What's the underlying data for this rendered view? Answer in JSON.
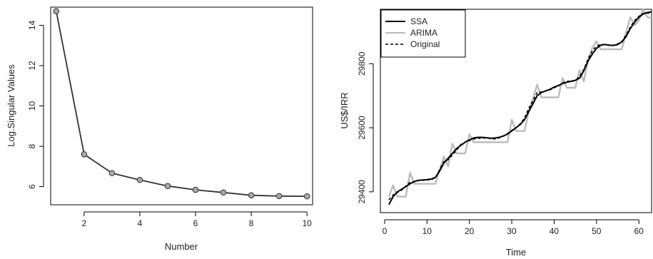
{
  "chart_data": [
    {
      "type": "line",
      "xlabel": "Number",
      "ylabel": "Log.Singular Values",
      "xlim": [
        0.8,
        10.2
      ],
      "ylim": [
        5.1,
        14.9
      ],
      "x_ticks": [
        2,
        4,
        6,
        8,
        10
      ],
      "y_ticks": [
        6,
        8,
        10,
        12,
        14
      ],
      "grid": false,
      "x": [
        1,
        2,
        3,
        4,
        5,
        6,
        7,
        8,
        9,
        10
      ],
      "series": [
        {
          "values": [
            14.7,
            7.6,
            6.67,
            6.33,
            6.03,
            5.84,
            5.71,
            5.57,
            5.53,
            5.52
          ],
          "color": "#333333",
          "marker": "circle",
          "marker_fill": "#a8a8a8"
        }
      ]
    },
    {
      "type": "line",
      "xlabel": "Time",
      "ylabel": "US$/IRR",
      "xlim": [
        -1,
        63
      ],
      "ylim": [
        29335,
        29970
      ],
      "x_ticks": [
        0,
        10,
        20,
        30,
        40,
        50,
        60
      ],
      "y_ticks": [
        29400,
        29600,
        29800
      ],
      "grid": false,
      "legend_position": "top-left",
      "x": [
        1,
        2,
        3,
        4,
        5,
        6,
        7,
        8,
        9,
        10,
        11,
        12,
        13,
        14,
        15,
        16,
        17,
        18,
        19,
        20,
        21,
        22,
        23,
        24,
        25,
        26,
        27,
        28,
        29,
        30,
        31,
        32,
        33,
        34,
        35,
        36,
        37,
        38,
        39,
        40,
        41,
        42,
        43,
        44,
        45,
        46,
        47,
        48,
        49,
        50,
        51,
        52,
        53,
        54,
        55,
        56,
        57,
        58,
        59,
        60,
        61,
        62,
        63
      ],
      "series": [
        {
          "name": "SSA",
          "color": "#000000",
          "dash": "solid",
          "values": [
            29360,
            29385,
            29400,
            29408,
            29416,
            29425,
            29432,
            29436,
            29437,
            29438,
            29440,
            29445,
            29465,
            29490,
            29505,
            29520,
            29535,
            29545,
            29555,
            29562,
            29568,
            29570,
            29570,
            29569,
            29567,
            29568,
            29570,
            29574,
            29580,
            29590,
            29600,
            29610,
            29625,
            29650,
            29675,
            29700,
            29710,
            29715,
            29720,
            29727,
            29732,
            29738,
            29742,
            29745,
            29748,
            29755,
            29778,
            29808,
            29830,
            29848,
            29858,
            29860,
            29858,
            29857,
            29860,
            29868,
            29885,
            29910,
            29930,
            29945,
            29955,
            29960,
            29962
          ]
        },
        {
          "name": "ARIMA",
          "color": "#bbbbbb",
          "dash": "solid",
          "values": [
            29385,
            29420,
            29385,
            29385,
            29385,
            29460,
            29425,
            29425,
            29425,
            29425,
            29425,
            29425,
            29470,
            29510,
            29480,
            29550,
            29520,
            29520,
            29520,
            29580,
            29555,
            29555,
            29555,
            29555,
            29555,
            29555,
            29555,
            29555,
            29555,
            29625,
            29590,
            29590,
            29590,
            29650,
            29690,
            29735,
            29695,
            29695,
            29695,
            29695,
            29695,
            29755,
            29725,
            29725,
            29725,
            29780,
            29745,
            29810,
            29850,
            29870,
            29845,
            29845,
            29845,
            29845,
            29845,
            29845,
            29900,
            29945,
            29920,
            29935,
            29970,
            29945,
            29943
          ]
        },
        {
          "name": "Original",
          "color": "#000000",
          "dash": "dashed",
          "values": [
            29375,
            29390,
            29398,
            29405,
            29418,
            29430,
            29432,
            29435,
            29436,
            29437,
            29438,
            29444,
            29470,
            29495,
            29500,
            29515,
            29530,
            29548,
            29555,
            29560,
            29565,
            29567,
            29568,
            29568,
            29566,
            29565,
            29568,
            29574,
            29582,
            29592,
            29600,
            29612,
            29630,
            29660,
            29685,
            29710,
            29712,
            29715,
            29718,
            29725,
            29730,
            29740,
            29745,
            29746,
            29748,
            29760,
            29782,
            29815,
            29840,
            29855,
            29860,
            29860,
            29857,
            29858,
            29862,
            29870,
            29890,
            29915,
            29935,
            29948,
            29957,
            29958,
            29958
          ]
        }
      ]
    }
  ]
}
